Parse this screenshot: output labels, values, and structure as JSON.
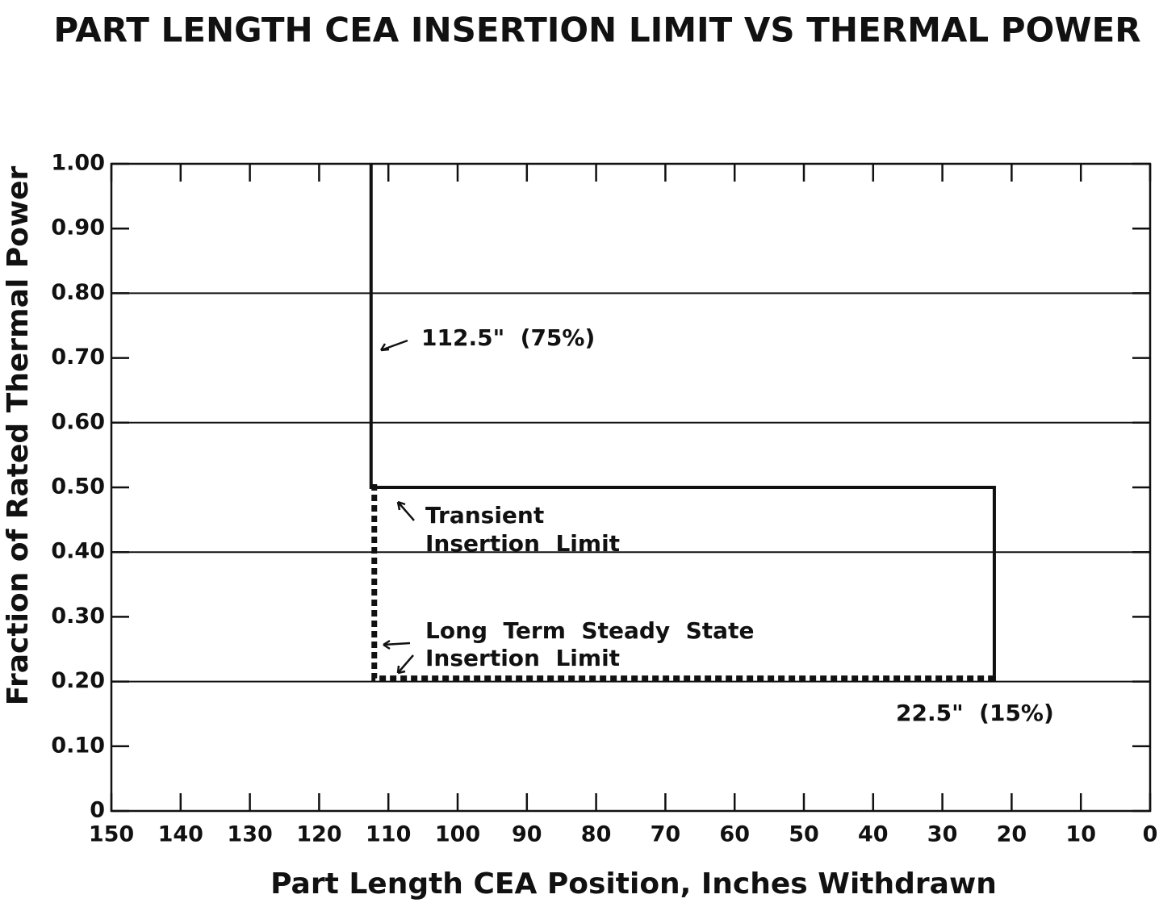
{
  "chart_data": {
    "type": "line",
    "title": "PART LENGTH CEA INSERTION LIMIT VS THERMAL POWER",
    "xlabel": "Part Length CEA Position, Inches Withdrawn",
    "ylabel": "Fraction of Rated Thermal Power",
    "xlim": [
      150,
      0
    ],
    "xticks": [
      150,
      140,
      130,
      120,
      110,
      100,
      90,
      80,
      70,
      60,
      50,
      40,
      30,
      20,
      10,
      0
    ],
    "ylim": [
      0,
      1
    ],
    "yticks": [
      0,
      {
        "value": 0.1,
        "label": "0.10"
      },
      {
        "value": 0.2,
        "label": "0.20"
      },
      {
        "value": 0.3,
        "label": "0.30"
      },
      {
        "value": 0.4,
        "label": "0.40"
      },
      {
        "value": 0.5,
        "label": "0.50"
      },
      {
        "value": 0.6,
        "label": "0.60"
      },
      {
        "value": 0.7,
        "label": "0.70"
      },
      {
        "value": 0.8,
        "label": "0.80"
      },
      {
        "value": 0.9,
        "label": "0.90"
      },
      {
        "value": 1,
        "label": "1.00"
      }
    ],
    "ygrid": [
      0.2,
      0.4,
      0.6,
      0.8
    ],
    "series": [
      {
        "color": "#111111",
        "style": "solid",
        "x": [
          112.5,
          112.5,
          22.5,
          22.5
        ],
        "values": [
          1,
          0.5,
          0.5,
          0.2
        ]
      },
      {
        "color": "#111111",
        "style": "dashed",
        "x": [
          112.5,
          112.5,
          22.5
        ],
        "values": [
          0.5,
          0.2,
          0.2
        ]
      }
    ],
    "annotations": [
      "112.5\"  (75%)",
      "Transient",
      "Insertion  Limit",
      "Long  Term  Steady  State",
      "Insertion  Limit",
      "22.5\"  (15%)"
    ]
  }
}
